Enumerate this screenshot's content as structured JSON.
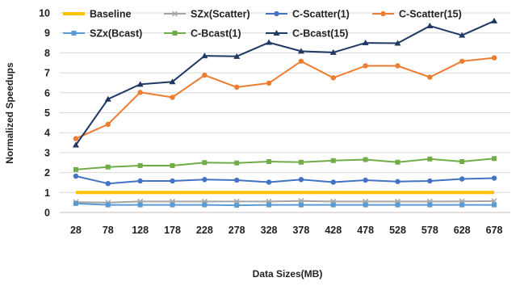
{
  "chart_data": {
    "type": "line",
    "title": "",
    "xlabel": "Data Sizes(MB)",
    "ylabel": "Normalized Speedups",
    "ylim": [
      0,
      10
    ],
    "yticks": [
      "0",
      "1",
      "2",
      "3",
      "4",
      "5",
      "6",
      "7",
      "8",
      "9",
      "10"
    ],
    "grid": "horizontal",
    "legend_position": "top",
    "categories": [
      "28",
      "78",
      "128",
      "178",
      "228",
      "278",
      "328",
      "378",
      "428",
      "478",
      "528",
      "578",
      "628",
      "678"
    ],
    "series": [
      {
        "name": "Baseline",
        "color": "#FFC000",
        "marker": "none",
        "values": [
          1,
          1,
          1,
          1,
          1,
          1,
          1,
          1,
          1,
          1,
          1,
          1,
          1,
          1
        ]
      },
      {
        "name": "SZx(Scatter)",
        "color": "#A5A5A5",
        "marker": "x",
        "values": [
          0.52,
          0.5,
          0.55,
          0.55,
          0.55,
          0.55,
          0.55,
          0.58,
          0.55,
          0.55,
          0.55,
          0.55,
          0.56,
          0.57
        ]
      },
      {
        "name": "C-Scatter(1)",
        "color": "#4472C4",
        "marker": "circle",
        "values": [
          1.82,
          1.45,
          1.58,
          1.58,
          1.65,
          1.62,
          1.52,
          1.65,
          1.52,
          1.62,
          1.55,
          1.58,
          1.68,
          1.72
        ]
      },
      {
        "name": "C-Scatter(15)",
        "color": "#ED7D31",
        "marker": "circle",
        "values": [
          3.7,
          4.42,
          6.02,
          5.77,
          6.88,
          6.28,
          6.48,
          7.58,
          6.75,
          7.35,
          7.35,
          6.78,
          7.58,
          7.75
        ]
      },
      {
        "name": "SZx(Bcast)",
        "color": "#5B9BD5",
        "marker": "square",
        "values": [
          0.45,
          0.38,
          0.38,
          0.38,
          0.38,
          0.36,
          0.38,
          0.38,
          0.38,
          0.38,
          0.38,
          0.38,
          0.38,
          0.38
        ]
      },
      {
        "name": "C-Bcast(1)",
        "color": "#70AD47",
        "marker": "square",
        "values": [
          2.15,
          2.28,
          2.35,
          2.35,
          2.5,
          2.48,
          2.55,
          2.52,
          2.6,
          2.65,
          2.52,
          2.68,
          2.55,
          2.7
        ]
      },
      {
        "name": "C-Bcast(15)",
        "color": "#203864",
        "marker": "triangle",
        "values": [
          3.38,
          5.68,
          6.42,
          6.55,
          7.85,
          7.82,
          8.52,
          8.08,
          8.02,
          8.5,
          8.48,
          9.35,
          8.88,
          9.6
        ]
      }
    ]
  }
}
